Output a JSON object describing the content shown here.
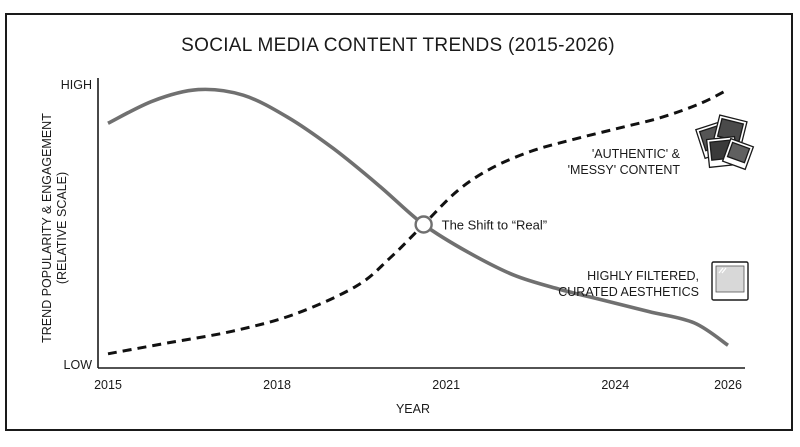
{
  "chart_data": {
    "type": "line",
    "title": "SOCIAL MEDIA CONTENT TRENDS (2015-2026)",
    "xlabel": "YEAR",
    "ylabel": [
      "TREND POPULARITY & ENGAGEMENT",
      "(RELATIVE SCALE)"
    ],
    "y_ticks": [
      "HIGH",
      "LOW"
    ],
    "x_ticks": [
      2015,
      2018,
      2021,
      2024,
      2026
    ],
    "xlim": [
      2015,
      2026
    ],
    "ylim": [
      0,
      100
    ],
    "grid": false,
    "series": [
      {
        "name": [
          "HIGHLY FILTERED,",
          "CURATED AESTHETICS"
        ],
        "style": "solid",
        "color": "#707070",
        "icon": "single-photo-icon",
        "x": [
          2015,
          2015.8,
          2016.6,
          2017.4,
          2018.2,
          2019.0,
          2019.8,
          2020.6,
          2021.4,
          2022.2,
          2023.0,
          2023.8,
          2024.6,
          2025.4,
          2026
        ],
        "y": [
          86,
          94,
          98,
          96,
          88,
          77,
          64,
          50,
          40,
          32,
          27,
          23,
          19,
          15,
          7
        ]
      },
      {
        "name": [
          "'AUTHENTIC' &",
          "'MESSY' CONTENT"
        ],
        "style": "dashed",
        "color": "#111111",
        "icon": "photo-stack-icon",
        "x": [
          2015,
          2016.1,
          2017.2,
          2018.3,
          2019.4,
          2020.0,
          2020.6,
          2021.2,
          2021.8,
          2022.5,
          2023.2,
          2024.0,
          2024.8,
          2025.5,
          2026
        ],
        "y": [
          4,
          8,
          12,
          18,
          28,
          38,
          50,
          62,
          70,
          76,
          80,
          84,
          88,
          93,
          98
        ]
      }
    ],
    "annotations": [
      {
        "text": "The Shift to “Real”",
        "x": 2020.6,
        "y": 50
      }
    ]
  }
}
